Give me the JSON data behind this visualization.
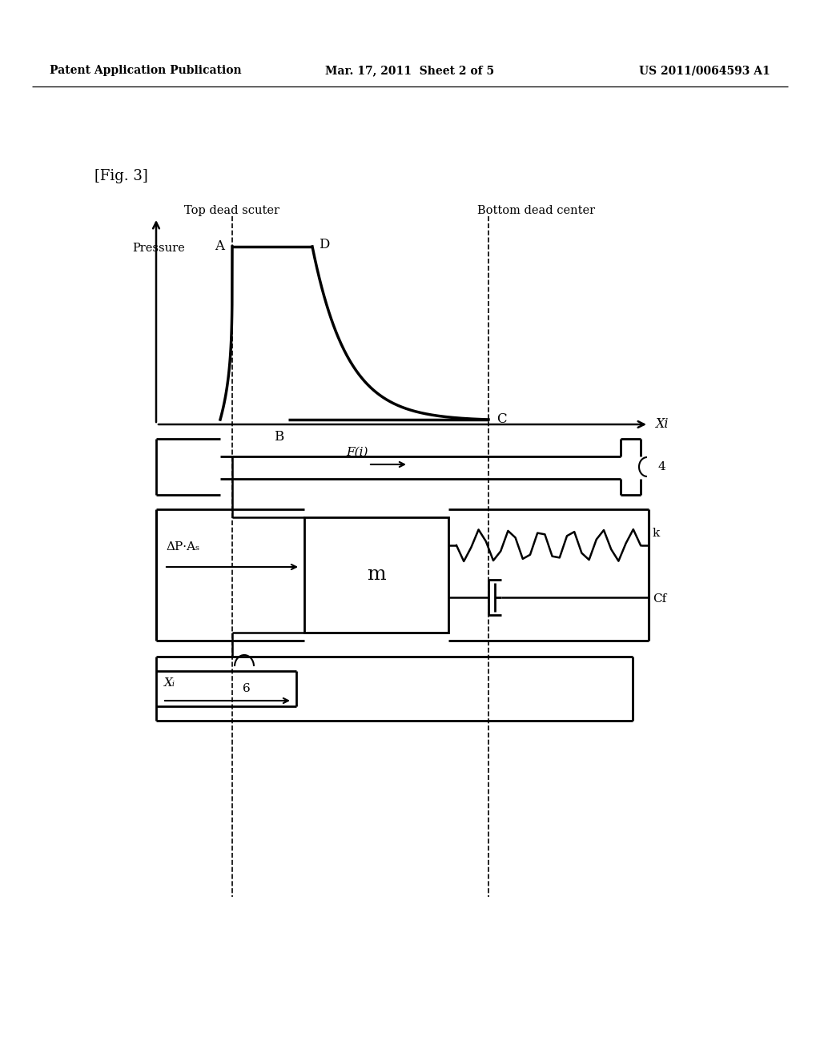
{
  "bg_color": "#ffffff",
  "text_color": "#000000",
  "header_left": "Patent Application Publication",
  "header_center": "Mar. 17, 2011  Sheet 2 of 5",
  "header_right": "US 2011/0064593 A1",
  "fig_label": "[Fig. 3]",
  "top_dead_label": "Top dead scuter",
  "bottom_dead_label": "Bottom dead center",
  "pressure_label": "Pressure",
  "xi_label": "Xi",
  "point_A": "A",
  "point_B": "B",
  "point_C": "C",
  "point_D": "D",
  "fi_label": "F(i)",
  "label_4": "4",
  "label_m": "m",
  "label_k": "k",
  "label_Cf": "Cf",
  "delta_label": "ΔP·Aₛ",
  "label_6": "6",
  "xi_arrow_label": "Xᵢ"
}
